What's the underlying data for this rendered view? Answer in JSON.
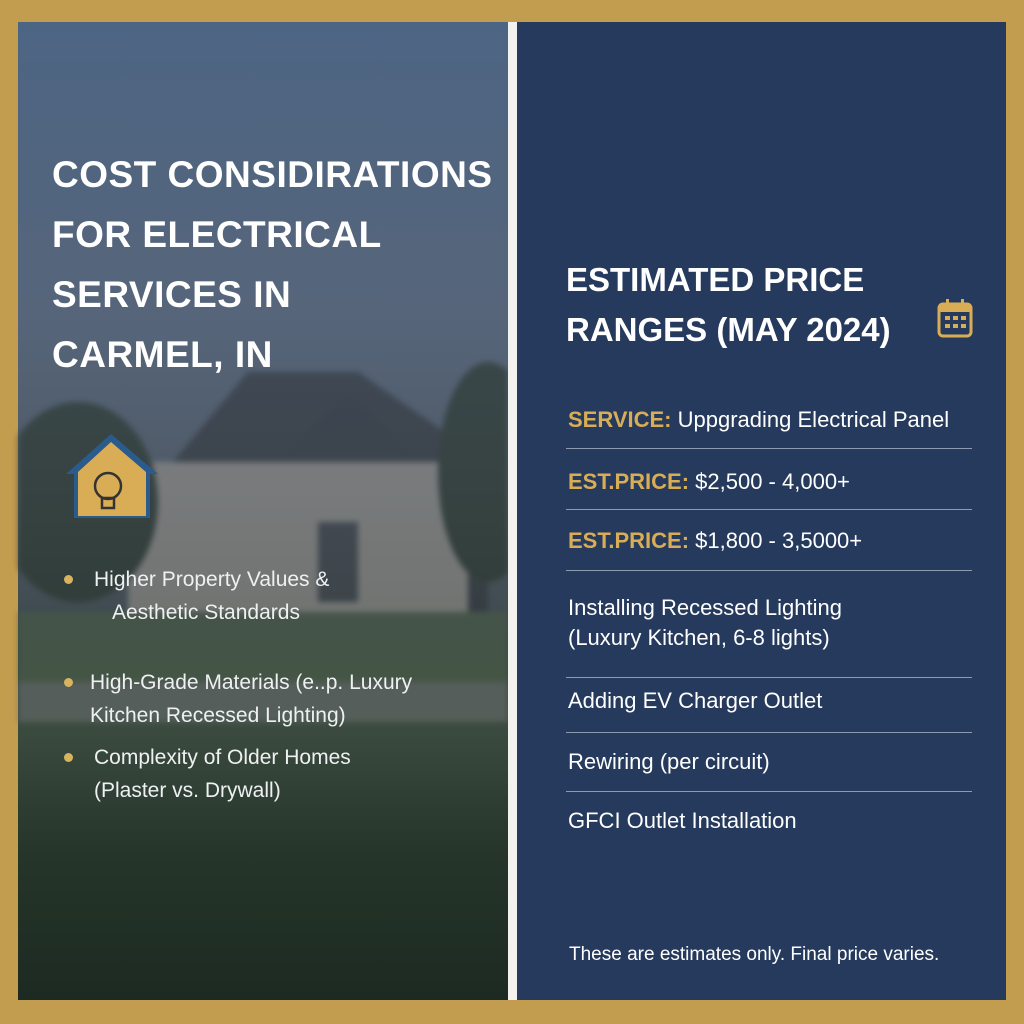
{
  "left": {
    "title_lines": [
      "COST CONSIDIRATIONS",
      "FOR ELECTRICAL",
      "SERVICES IN",
      "CARMEL, IN"
    ],
    "bullets": [
      [
        "Higher Property Values &",
        "Aesthetic Standards"
      ],
      [
        "High-Grade Materials (e..p. Luxury",
        "Kitchen Recessed Lighting)"
      ],
      [
        "Complexity of Older Homes",
        "(Plaster vs. Drywall)"
      ]
    ]
  },
  "right": {
    "heading_lines": [
      "ESTIMATED PRICE",
      "RANGES (MAY 2024)"
    ],
    "rows": [
      {
        "label": "SERVICE:",
        "text": "Uppgrading Electrical Panel"
      },
      {
        "label": "EST.PRICE:",
        "text": "$2,500 - 4,000+"
      },
      {
        "label": "EST.PRICE:",
        "text": "$1,800 - 3,5000+"
      },
      {
        "lines": [
          "Installing Recessed Lighting",
          "(Luxury Kitchen, 6-8 lights)"
        ]
      },
      {
        "text": "Adding EV Charger Outlet"
      },
      {
        "text": "Rewiring (per circuit)"
      },
      {
        "text": "GFCI Outlet Installation"
      }
    ],
    "footnote": "These are estimates only. Final price varies."
  }
}
